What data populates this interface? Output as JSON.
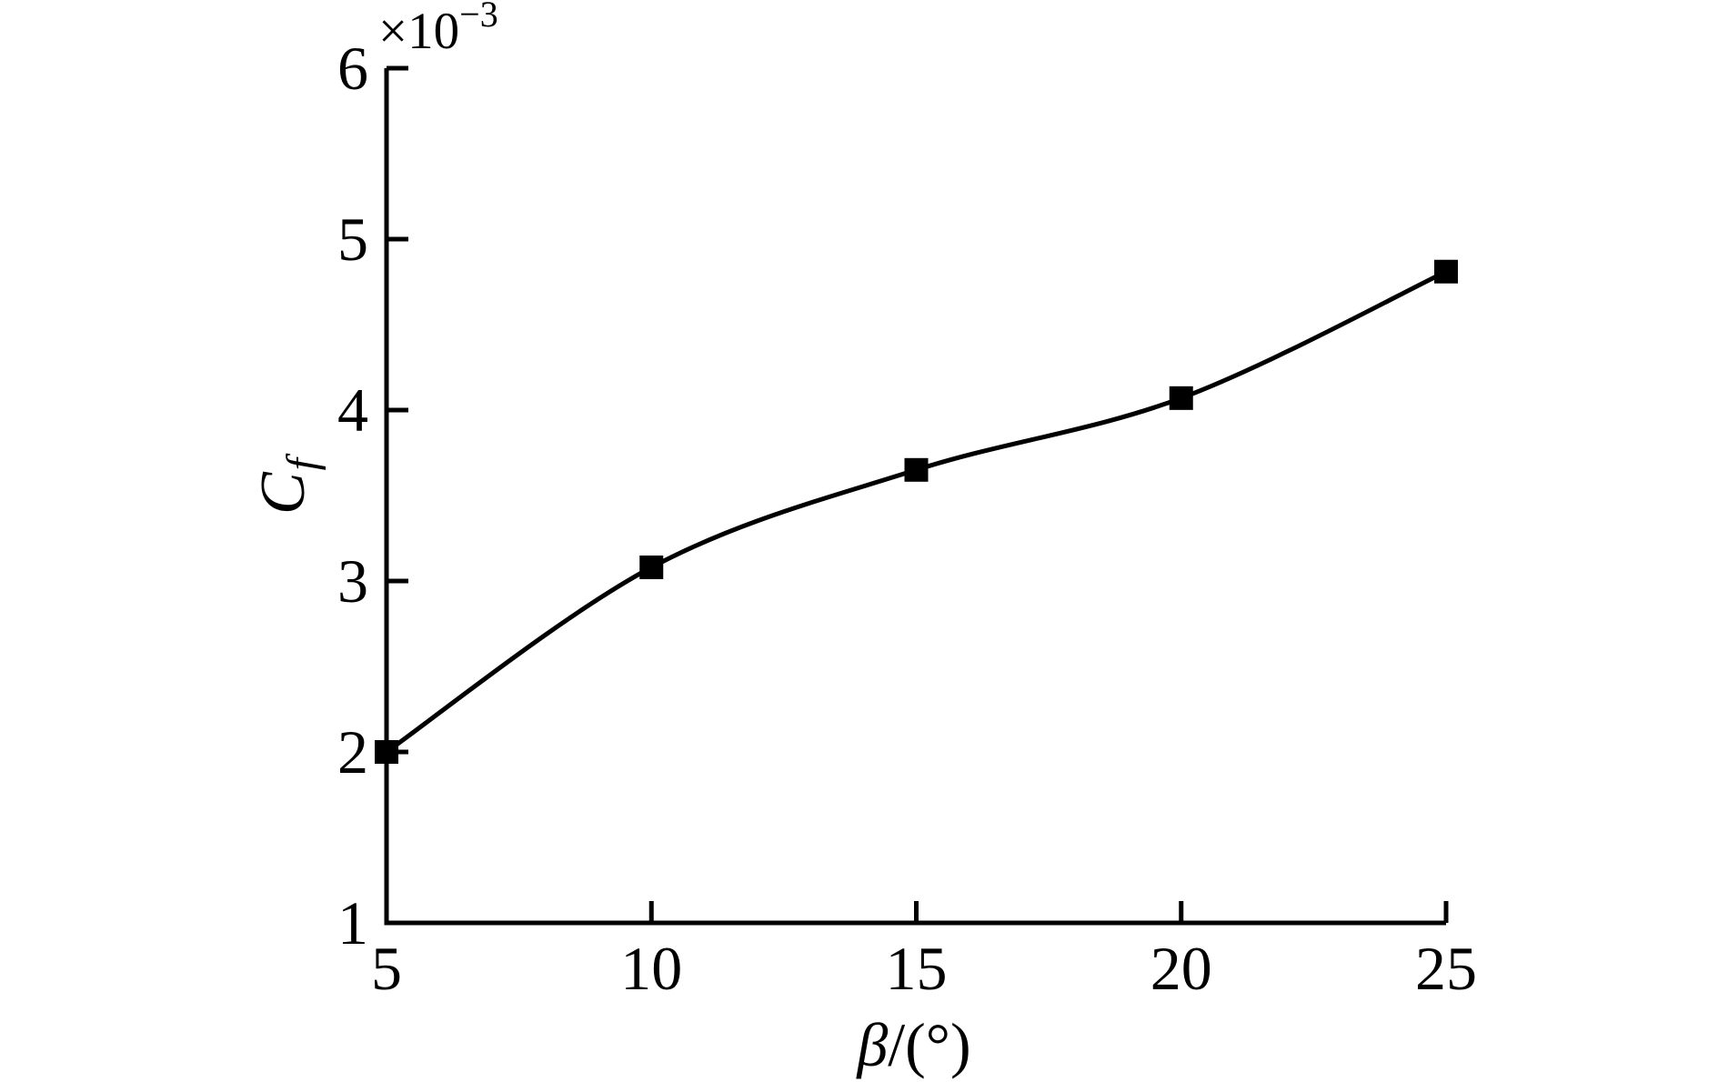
{
  "figure": {
    "background_color": "#ffffff",
    "ink_color": "#000000"
  },
  "chart_data": {
    "type": "line",
    "title": "",
    "y_offset_label": {
      "base": "×10",
      "exponent": "−3"
    },
    "xlabel": {
      "symbol": "β",
      "rest": "/(°)"
    },
    "ylabel": {
      "base": "C",
      "subscript": "f"
    },
    "x": [
      5,
      10,
      15,
      20,
      25
    ],
    "series": [
      {
        "name": "Cf",
        "values": [
          2.0,
          3.08,
          3.65,
          4.07,
          4.81
        ],
        "unit_multiplier": "1e-3",
        "color": "#000000",
        "line_style": "solid",
        "marker": "filled-square"
      }
    ],
    "x_ticks": [
      "5",
      "10",
      "15",
      "20",
      "25"
    ],
    "y_ticks": [
      "1",
      "2",
      "3",
      "4",
      "5",
      "6"
    ],
    "xlim": [
      5,
      25
    ],
    "ylim": [
      1,
      6
    ],
    "grid": false,
    "legend": false
  }
}
